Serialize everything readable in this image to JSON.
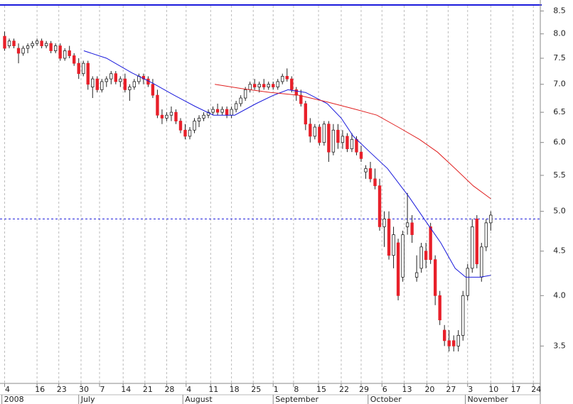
{
  "chart_data": {
    "type": "candlestick",
    "log_scale": true,
    "up_color": "#ffffff",
    "down_color": "#e8202a",
    "ylim": [
      3.17,
      8.62
    ],
    "yticks": [
      3.5,
      {
        "value": 4.0,
        "label": "4.0"
      },
      4.5,
      {
        "value": 5.0,
        "label": "5.0"
      },
      5.5,
      {
        "value": 6.0,
        "label": "6.0"
      },
      6.5,
      {
        "value": 7.0,
        "label": "7.0"
      },
      7.5,
      {
        "value": 8.0,
        "label": "8.0"
      },
      8.5
    ],
    "xlim": [
      -1,
      115.7
    ],
    "xticks": [
      {
        "value": 0,
        "label": "4"
      },
      {
        "value": 7,
        "label": "16"
      },
      {
        "value": 11.7,
        "label": "23"
      },
      {
        "value": 16.5,
        "label": "30"
      },
      {
        "value": 20.5,
        "label": "7"
      },
      {
        "value": 25.6,
        "label": "14"
      },
      {
        "value": 30.3,
        "label": "21"
      },
      {
        "value": 35,
        "label": "28"
      },
      {
        "value": 39.2,
        "label": "4"
      },
      {
        "value": 44.5,
        "label": "11"
      },
      {
        "value": 49,
        "label": "18"
      },
      {
        "value": 53.7,
        "label": "25"
      },
      {
        "value": 58,
        "label": "1"
      },
      {
        "value": 62.4,
        "label": "8"
      },
      {
        "value": 67.8,
        "label": "15"
      },
      {
        "value": 72.7,
        "label": "22"
      },
      {
        "value": 77,
        "label": "29"
      },
      {
        "value": 81.5,
        "label": "6"
      },
      {
        "value": 86.3,
        "label": "13"
      },
      {
        "value": 91.2,
        "label": "20"
      },
      {
        "value": 95.8,
        "label": "27"
      },
      {
        "value": 100,
        "label": "3"
      },
      {
        "value": 105,
        "label": "10"
      },
      {
        "value": 109.8,
        "label": "17"
      },
      {
        "value": 114.2,
        "label": "24"
      }
    ],
    "month_labels": [
      {
        "value": -0.6,
        "label": "2008"
      },
      {
        "value": 16,
        "label": "July"
      },
      {
        "value": 38.5,
        "label": "August"
      },
      {
        "value": 58,
        "label": "September"
      },
      {
        "value": 78.5,
        "label": "October"
      },
      {
        "value": 99.5,
        "label": "November"
      }
    ],
    "reference_line": {
      "value": 4.9,
      "color": "#1a1adc"
    },
    "grid": true,
    "x": [
      0,
      1,
      2,
      3,
      4,
      5,
      6,
      7,
      8,
      9,
      10,
      11,
      12,
      13,
      14,
      15,
      16,
      17,
      18,
      19,
      20,
      21,
      22,
      23,
      24,
      25,
      26,
      27,
      28,
      29,
      30,
      31,
      32,
      33,
      34,
      35,
      36,
      37,
      38,
      39,
      40,
      41,
      42,
      43,
      44,
      45,
      46,
      47,
      48,
      49,
      50,
      51,
      52,
      53,
      54,
      55,
      56,
      57,
      58,
      59,
      60,
      61,
      62,
      63,
      64,
      65,
      66,
      67,
      68,
      69,
      70,
      71,
      72,
      73,
      74,
      75,
      76,
      77,
      78,
      79,
      80,
      81,
      82,
      83,
      84,
      85,
      86,
      87,
      88,
      89,
      90,
      91,
      92,
      93,
      94,
      95,
      96,
      97,
      98,
      99,
      100,
      101,
      102,
      103,
      104,
      105
    ],
    "open": [
      7.95,
      7.75,
      7.85,
      7.7,
      7.6,
      7.7,
      7.75,
      7.8,
      7.85,
      7.75,
      7.8,
      7.65,
      7.75,
      7.5,
      7.65,
      7.55,
      7.4,
      7.2,
      7.4,
      6.95,
      7.1,
      6.9,
      7.05,
      7.1,
      7.2,
      7.05,
      7.1,
      6.9,
      6.95,
      7.05,
      7.15,
      7.1,
      7.0,
      6.8,
      6.45,
      6.4,
      6.45,
      6.5,
      6.35,
      6.2,
      6.1,
      6.2,
      6.35,
      6.4,
      6.45,
      6.5,
      6.55,
      6.5,
      6.55,
      6.45,
      6.55,
      6.65,
      6.75,
      6.9,
      7.0,
      6.95,
      7.0,
      6.95,
      7.0,
      6.95,
      7.05,
      7.15,
      7.1,
      6.9,
      6.8,
      6.65,
      6.3,
      6.1,
      6.25,
      6.0,
      6.3,
      5.85,
      6.2,
      6.0,
      6.1,
      5.9,
      6.05,
      5.85,
      5.55,
      5.6,
      5.45,
      5.35,
      4.8,
      4.9,
      4.45,
      4.6,
      4.2,
      4.8,
      4.85,
      4.2,
      4.3,
      4.5,
      4.8,
      4.4,
      4.0,
      3.65,
      3.55,
      3.55,
      3.5,
      3.6,
      4.0,
      4.3,
      4.9,
      4.2,
      4.55,
      4.85
    ],
    "high": [
      8.05,
      7.9,
      7.9,
      7.8,
      7.75,
      7.8,
      7.85,
      7.9,
      7.9,
      7.85,
      7.85,
      7.8,
      7.8,
      7.7,
      7.75,
      7.6,
      7.5,
      7.45,
      7.45,
      7.15,
      7.15,
      7.1,
      7.15,
      7.25,
      7.25,
      7.15,
      7.2,
      7.0,
      7.1,
      7.2,
      7.2,
      7.15,
      7.1,
      6.9,
      6.55,
      6.5,
      6.6,
      6.55,
      6.4,
      6.3,
      6.25,
      6.4,
      6.45,
      6.5,
      6.55,
      6.6,
      6.65,
      6.6,
      6.6,
      6.6,
      6.7,
      6.8,
      6.95,
      7.05,
      7.1,
      7.05,
      7.1,
      7.05,
      7.05,
      7.1,
      7.2,
      7.3,
      7.15,
      6.95,
      6.9,
      6.7,
      6.4,
      6.3,
      6.3,
      6.35,
      6.35,
      6.3,
      6.3,
      6.2,
      6.15,
      6.15,
      6.1,
      5.95,
      5.65,
      5.7,
      5.6,
      5.45,
      5.0,
      5.0,
      4.8,
      4.65,
      4.75,
      5.25,
      4.95,
      4.45,
      4.6,
      4.6,
      4.85,
      4.45,
      4.05,
      3.7,
      3.65,
      3.6,
      3.65,
      4.05,
      4.35,
      4.9,
      4.95,
      4.6,
      4.9,
      5.0
    ],
    "low": [
      7.65,
      7.7,
      7.7,
      7.4,
      7.55,
      7.6,
      7.7,
      7.75,
      7.7,
      7.7,
      7.6,
      7.6,
      7.45,
      7.45,
      7.5,
      7.35,
      7.1,
      7.15,
      6.9,
      6.75,
      6.85,
      6.85,
      6.95,
      7.0,
      7.0,
      6.95,
      6.85,
      6.7,
      6.9,
      7.0,
      7.0,
      6.95,
      6.75,
      6.4,
      6.3,
      6.35,
      6.35,
      6.3,
      6.15,
      6.05,
      6.05,
      6.15,
      6.25,
      6.35,
      6.4,
      6.45,
      6.45,
      6.45,
      6.4,
      6.4,
      6.5,
      6.6,
      6.7,
      6.85,
      6.9,
      6.85,
      6.9,
      6.9,
      6.9,
      6.9,
      7.0,
      7.05,
      6.85,
      6.7,
      6.6,
      6.2,
      6.0,
      6.05,
      5.95,
      5.95,
      5.7,
      5.8,
      5.9,
      5.9,
      5.85,
      5.85,
      5.8,
      5.7,
      5.45,
      5.4,
      5.3,
      4.75,
      4.55,
      4.4,
      4.3,
      3.95,
      4.15,
      4.7,
      4.6,
      4.15,
      4.25,
      4.3,
      4.35,
      3.9,
      3.7,
      3.5,
      3.45,
      3.45,
      3.45,
      3.55,
      3.95,
      4.25,
      4.3,
      4.15,
      4.5,
      4.75
    ],
    "close": [
      7.7,
      7.85,
      7.75,
      7.6,
      7.7,
      7.75,
      7.8,
      7.85,
      7.75,
      7.8,
      7.65,
      7.75,
      7.5,
      7.65,
      7.55,
      7.4,
      7.2,
      7.4,
      7.0,
      7.1,
      6.9,
      7.05,
      7.1,
      7.2,
      7.05,
      7.1,
      6.9,
      6.95,
      7.05,
      7.15,
      7.1,
      7.0,
      6.8,
      6.45,
      6.4,
      6.45,
      6.5,
      6.35,
      6.2,
      6.1,
      6.2,
      6.35,
      6.4,
      6.45,
      6.5,
      6.55,
      6.5,
      6.55,
      6.45,
      6.55,
      6.65,
      6.75,
      6.9,
      7.0,
      6.95,
      7.0,
      6.95,
      7.0,
      6.95,
      7.05,
      7.15,
      7.1,
      6.9,
      6.8,
      6.65,
      6.3,
      6.1,
      6.25,
      6.0,
      6.3,
      5.85,
      6.2,
      6.0,
      6.1,
      5.9,
      6.05,
      5.85,
      5.75,
      5.6,
      5.45,
      5.35,
      4.8,
      4.9,
      4.45,
      4.7,
      4.0,
      4.7,
      4.85,
      4.7,
      4.25,
      4.55,
      4.4,
      4.4,
      4.0,
      3.75,
      3.55,
      3.5,
      3.5,
      3.6,
      4.0,
      4.3,
      4.8,
      4.35,
      4.55,
      4.85,
      4.95
    ],
    "lines": [
      {
        "color": "#1a1adc",
        "x": [
          17.1,
          22,
          27.4,
          32,
          36.6,
          41.2,
          45.1,
          49.7,
          54.3,
          58.1,
          61.2,
          65,
          69.7,
          72.7,
          75.3,
          78.9,
          82.7,
          87.3,
          91.2,
          94.2,
          97.3,
          99.6,
          102.7,
          105
        ],
        "values": [
          7.65,
          7.5,
          7.22,
          7.02,
          6.8,
          6.6,
          6.45,
          6.45,
          6.65,
          6.8,
          6.9,
          6.85,
          6.65,
          6.4,
          6.1,
          5.85,
          5.6,
          5.2,
          4.85,
          4.6,
          4.3,
          4.2,
          4.2,
          4.22
        ]
      },
      {
        "color": "#e02020",
        "x": [
          45.4,
          51.2,
          57.4,
          63.5,
          69.7,
          75.8,
          80.4,
          85,
          89.6,
          93.5,
          97.3,
          101.2,
          105
        ],
        "values": [
          7.0,
          6.92,
          6.85,
          6.8,
          6.68,
          6.55,
          6.45,
          6.25,
          6.05,
          5.85,
          5.6,
          5.35,
          5.17
        ]
      }
    ]
  }
}
